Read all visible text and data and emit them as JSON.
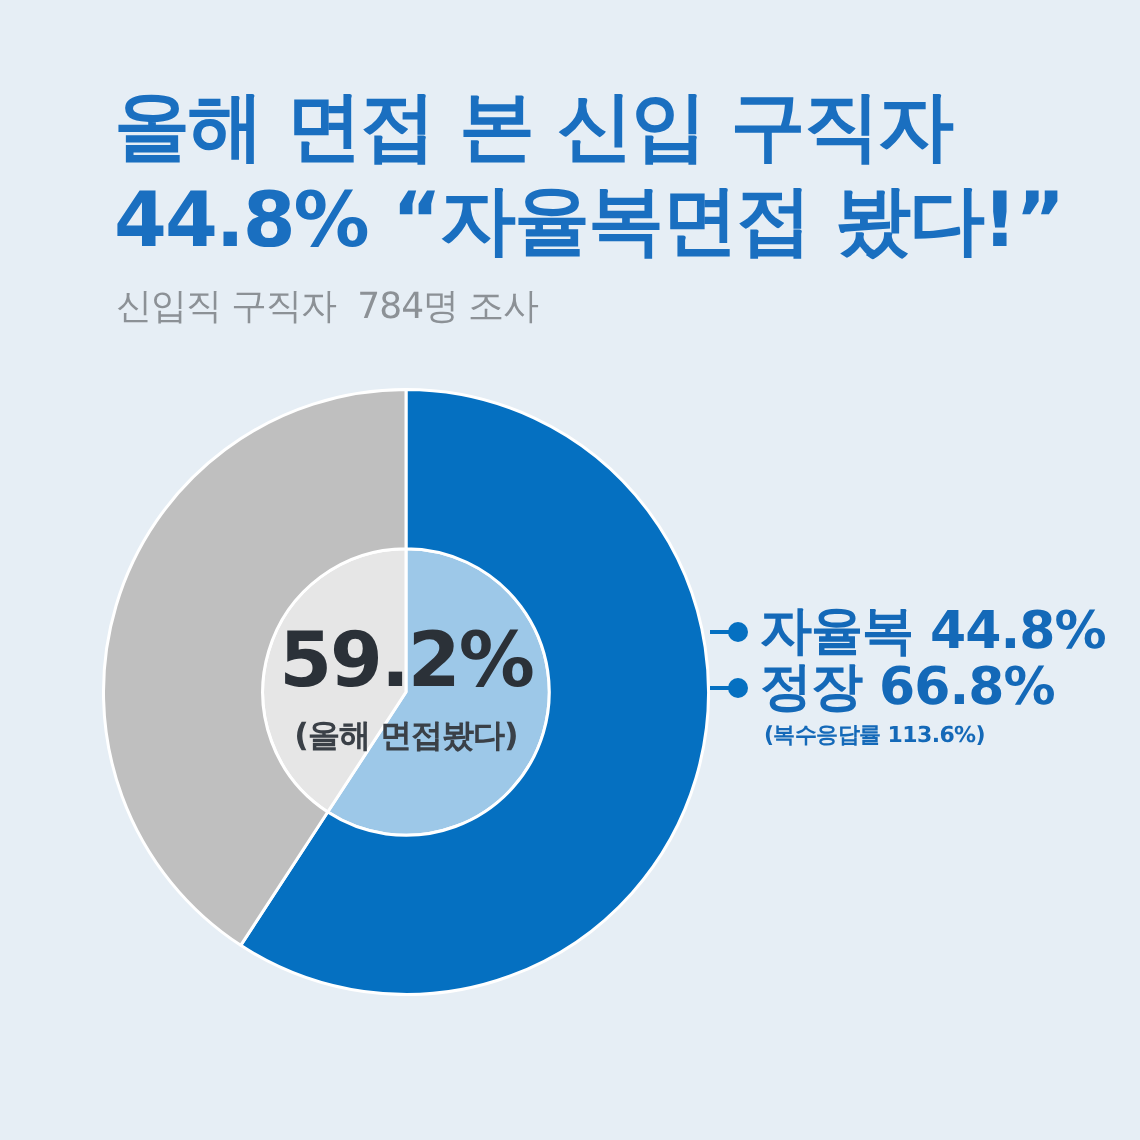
{
  "chart_data": {
    "type": "pie",
    "title": "올해 면접 본 신입 구직자\n44.8% “자율복면접 봤다!”",
    "subtitle": "신입직 구직자  784명 조사",
    "categories": [
      null,
      null
    ],
    "series": [
      {
        "values": [
          59.2,
          40.8
        ],
        "colors": [
          "#0570c1",
          "#bfbfbf"
        ]
      },
      {
        "values": [
          59.2,
          40.8
        ],
        "colors": [
          "#9dc8e8",
          "#e6e6e6"
        ]
      }
    ],
    "annotations": [
      "59.2%",
      "(올해 면접봤다)",
      "자율복 44.8%",
      "정장 66.8%",
      "(복수응답률 113.6%)"
    ]
  }
}
